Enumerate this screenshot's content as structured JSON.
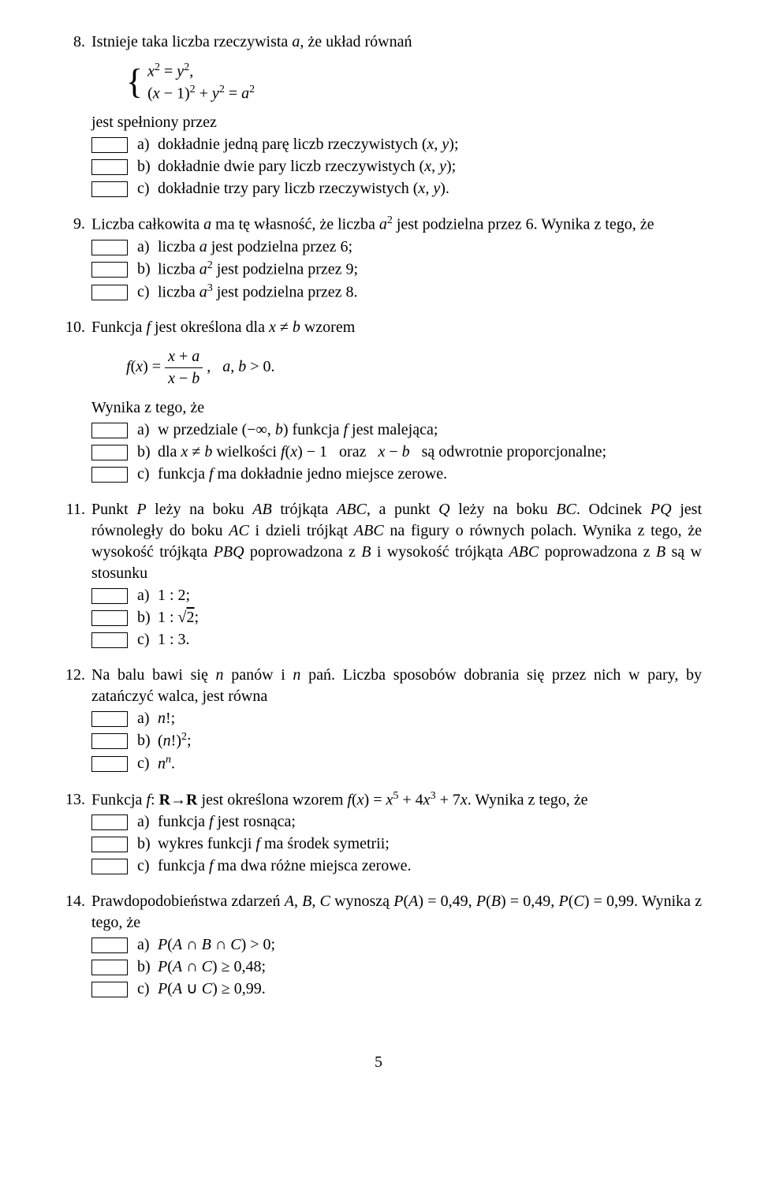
{
  "page_number": "5",
  "problems": [
    {
      "num": "8.",
      "intro_html": "Istnieje taka liczba rzeczywista <span class='math'>a</span>, że układ równań",
      "formula_html": "<span class='brace'>{</span><span class='eqs'><span class='math'>x</span><sup>2</sup> = <span class='math'>y</span><sup>2</sup>,<br>(<span class='math'>x</span> − 1)<sup>2</sup> + <span class='math'>y</span><sup>2</sup> = <span class='math'>a</span><sup>2</sup></span>",
      "subtext": "jest spełniony przez",
      "choices": [
        {
          "label": "a)",
          "html": "dokładnie jedną parę liczb rzeczywistych (<span class='math'>x</span>, <span class='math'>y</span>);"
        },
        {
          "label": "b)",
          "html": "dokładnie dwie pary liczb rzeczywistych (<span class='math'>x</span>, <span class='math'>y</span>);"
        },
        {
          "label": "c)",
          "html": "dokładnie trzy pary liczb rzeczywistych (<span class='math'>x</span>, <span class='math'>y</span>)."
        }
      ]
    },
    {
      "num": "9.",
      "intro_html": "Liczba całkowita <span class='math'>a</span> ma tę własność, że liczba <span class='math'>a</span><sup>2</sup> jest podzielna przez 6. Wynika z tego, że",
      "choices": [
        {
          "label": "a)",
          "html": "liczba <span class='math'>a</span> jest podzielna przez 6;"
        },
        {
          "label": "b)",
          "html": "liczba <span class='math'>a</span><sup>2</sup> jest podzielna przez 9;"
        },
        {
          "label": "c)",
          "html": "liczba <span class='math'>a</span><sup>3</sup> jest podzielna przez 8."
        }
      ]
    },
    {
      "num": "10.",
      "intro_html": "Funkcja <span class='math'>f</span> jest określona dla <span class='math'>x</span> ≠ <span class='math'>b</span> wzorem",
      "formula_html": "<span class='math'>f</span>(<span class='math'>x</span>) = <span class='frac'><span class='num'><span class='math'>x</span> + <span class='math'>a</span></span><span class='den'><span class='math'>x</span> − <span class='math'>b</span></span></span> ,&nbsp;&nbsp;&nbsp;<span class='math'>a</span>, <span class='math'>b</span> &gt; 0.",
      "subtext": "Wynika z tego, że",
      "choices": [
        {
          "label": "a)",
          "html": "w przedziale (−∞, <span class='math'>b</span>) funkcja <span class='math'>f</span> jest malejąca;"
        },
        {
          "label": "b)",
          "html": "dla <span class='math'>x</span> ≠ <span class='math'>b</span> wielkości <span class='math'>f</span>(<span class='math'>x</span>) − 1 &nbsp;&nbsp;oraz&nbsp;&nbsp; <span class='math'>x</span> − <span class='math'>b</span> &nbsp;&nbsp;są odwrotnie proporcjonalne;"
        },
        {
          "label": "c)",
          "html": "funkcja <span class='math'>f</span> ma dokładnie jedno miejsce zerowe."
        }
      ]
    },
    {
      "num": "11.",
      "intro_html": "Punkt <span class='math'>P</span> leży na boku <span class='math'>AB</span> trójkąta <span class='math'>ABC</span>, a punkt <span class='math'>Q</span> leży na boku <span class='math'>BC</span>. Odcinek <span class='math'>PQ</span> jest równoległy do boku <span class='math'>AC</span> i dzieli trójkąt <span class='math'>ABC</span> na figury o równych polach. Wynika z tego, że wysokość trójkąta <span class='math'>PBQ</span> poprowadzona z <span class='math'>B</span> i wysokość trójkąta <span class='math'>ABC</span> poprowadzona z <span class='math'>B</span> są w stosunku",
      "choices": [
        {
          "label": "a)",
          "html": "1 : 2;"
        },
        {
          "label": "b)",
          "html": "1 : √<span class='sqrt'>2</span>;"
        },
        {
          "label": "c)",
          "html": "1 : 3."
        }
      ]
    },
    {
      "num": "12.",
      "intro_html": "Na balu bawi się <span class='math'>n</span> panów i <span class='math'>n</span> pań. Liczba sposobów dobrania się przez nich w pary, by zatańczyć walca, jest równa",
      "choices": [
        {
          "label": "a)",
          "html": "<span class='math'>n</span>!;"
        },
        {
          "label": "b)",
          "html": "(<span class='math'>n</span>!)<sup>2</sup>;"
        },
        {
          "label": "c)",
          "html": "<span class='math'>n</span><sup><span class='math'>n</span></sup>."
        }
      ]
    },
    {
      "num": "13.",
      "intro_html": "Funkcja <span class='math'>f</span>: <b>R</b>→<b>R</b> jest określona wzorem <span class='math'>f</span>(<span class='math'>x</span>) = <span class='math'>x</span><sup>5</sup> + 4<span class='math'>x</span><sup>3</sup> + 7<span class='math'>x</span>. Wynika z tego, że",
      "choices": [
        {
          "label": "a)",
          "html": "funkcja <span class='math'>f</span> jest rosnąca;"
        },
        {
          "label": "b)",
          "html": "wykres funkcji <span class='math'>f</span> ma środek symetrii;"
        },
        {
          "label": "c)",
          "html": "funkcja <span class='math'>f</span> ma dwa różne miejsca zerowe."
        }
      ]
    },
    {
      "num": "14.",
      "intro_html": "Prawdopodobieństwa zdarzeń <span class='math'>A</span>, <span class='math'>B</span>, <span class='math'>C</span> wynoszą <span class='math'>P</span>(<span class='math'>A</span>) = 0,49, <span class='math'>P</span>(<span class='math'>B</span>) = 0,49, <span class='math'>P</span>(<span class='math'>C</span>) = 0,99. Wynika z tego, że",
      "choices": [
        {
          "label": "a)",
          "html": "<span class='math'>P</span>(<span class='math'>A</span> ∩ <span class='math'>B</span> ∩ <span class='math'>C</span>) &gt; 0;"
        },
        {
          "label": "b)",
          "html": "<span class='math'>P</span>(<span class='math'>A</span> ∩ <span class='math'>C</span>) ≥ 0,48;"
        },
        {
          "label": "c)",
          "html": "<span class='math'>P</span>(<span class='math'>A</span> ∪ <span class='math'>C</span>) ≥ 0,99."
        }
      ]
    }
  ]
}
